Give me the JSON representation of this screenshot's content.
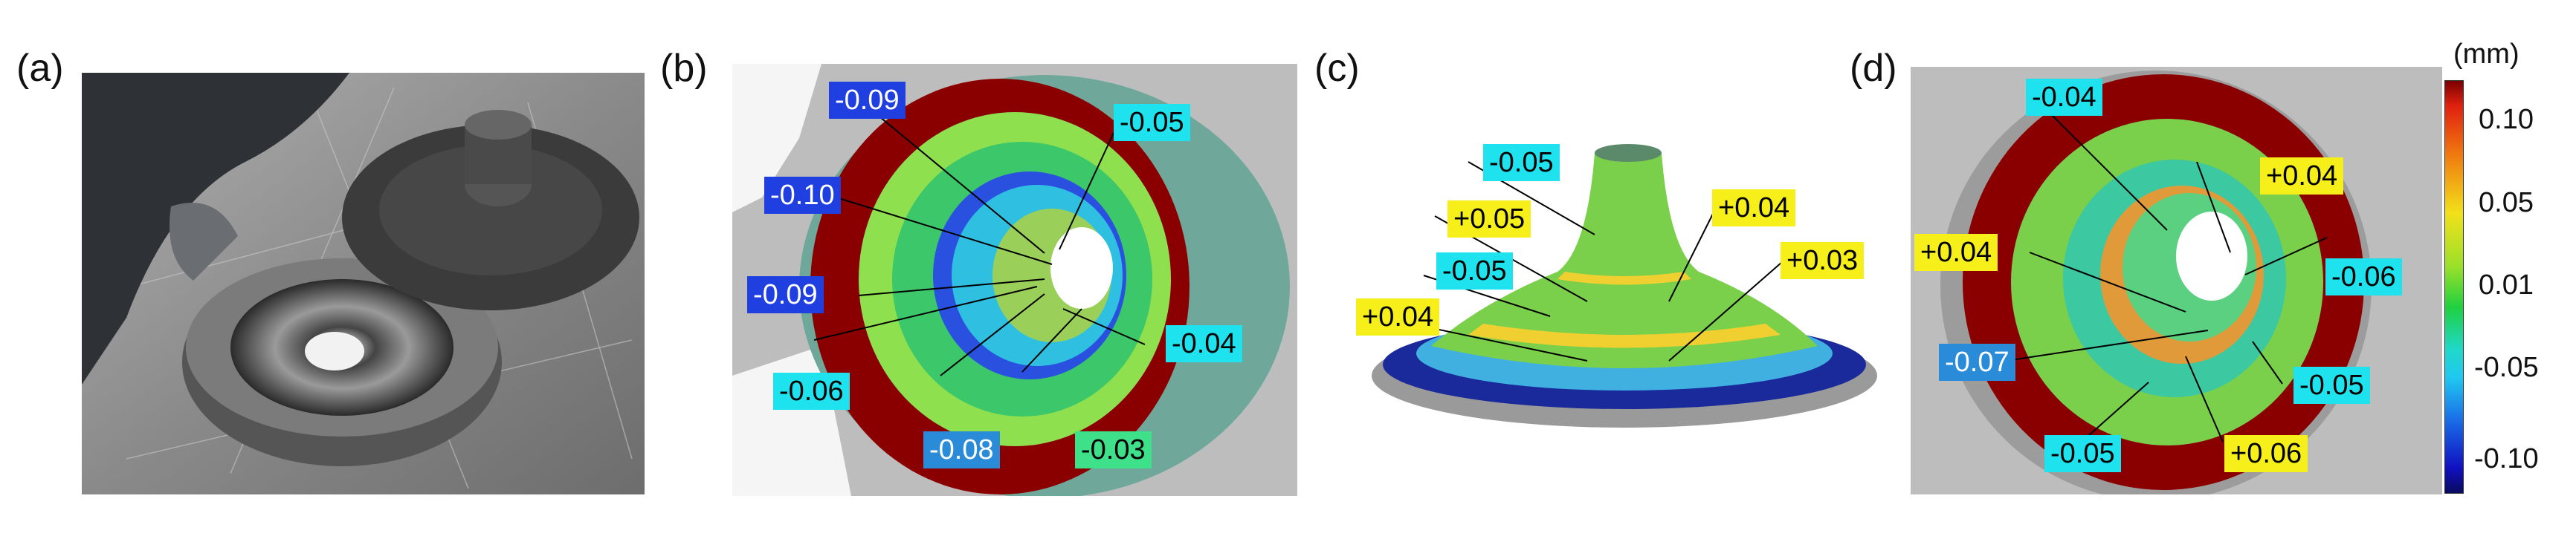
{
  "panels": {
    "a": {
      "label": "(a)"
    },
    "b": {
      "label": "(b)",
      "tags": [
        "-0.09",
        "-0.10",
        "-0.09",
        "-0.06",
        "-0.08",
        "-0.03",
        "-0.04",
        "-0.05"
      ]
    },
    "c": {
      "label": "(c)",
      "tags": [
        "-0.05",
        "+0.05",
        "-0.05",
        "+0.04",
        "+0.04",
        "+0.03"
      ]
    },
    "d": {
      "label": "(d)",
      "tags": [
        "-0.04",
        "+0.04",
        "+0.04",
        "-0.06",
        "-0.07",
        "-0.05",
        "-0.05",
        "+0.06"
      ]
    }
  },
  "colorbar": {
    "unit": "(mm)",
    "ticks": [
      "0.10",
      "0.05",
      "0.01",
      "-0.05",
      "-0.10"
    ],
    "colors": [
      "#7a0000",
      "#e02010",
      "#f07a10",
      "#f2e01a",
      "#9ae02a",
      "#20d040",
      "#20d8c8",
      "#20c8f0",
      "#1a70e8",
      "#1010c0",
      "#0a0a60"
    ]
  }
}
